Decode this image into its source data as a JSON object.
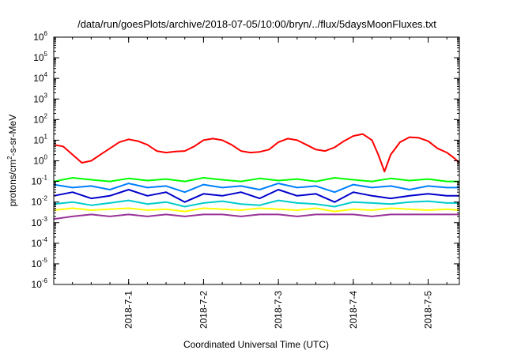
{
  "chart_data": {
    "type": "line",
    "title": "/data/run/goesPlots/archive/2018-07-05/10:00/bryn/../flux/5daysMoonFluxes.txt",
    "xlabel": "Coordinated Universal Time (UTC)",
    "ylabel": {
      "base": "protons/cm",
      "exponent": "2",
      "rest": "-s-sr-MeV"
    },
    "yscale": "log",
    "ylim": [
      1e-06,
      1000000.0
    ],
    "y_ticks": [
      {
        "base": "10",
        "exponent": "-6",
        "value": 1e-06
      },
      {
        "base": "10",
        "exponent": "-5",
        "value": 1e-05
      },
      {
        "base": "10",
        "exponent": "-4",
        "value": 0.0001
      },
      {
        "base": "10",
        "exponent": "-3",
        "value": 0.001
      },
      {
        "base": "10",
        "exponent": "-2",
        "value": 0.01
      },
      {
        "base": "10",
        "exponent": "-1",
        "value": 0.1
      },
      {
        "base": "10",
        "exponent": "0",
        "value": 1
      },
      {
        "base": "10",
        "exponent": "1",
        "value": 10
      },
      {
        "base": "10",
        "exponent": "2",
        "value": 100
      },
      {
        "base": "10",
        "exponent": "3",
        "value": 1000
      },
      {
        "base": "10",
        "exponent": "4",
        "value": 10000
      },
      {
        "base": "10",
        "exponent": "5",
        "value": 100000
      },
      {
        "base": "10",
        "exponent": "6",
        "value": 1000000
      }
    ],
    "xlim": [
      "2018-06-30T00:00",
      "2018-07-05T10:00"
    ],
    "x_ticks": [
      {
        "label": "2018-7-1",
        "value": "2018-07-01T00:00"
      },
      {
        "label": "2018-7-2",
        "value": "2018-07-02T00:00"
      },
      {
        "label": "2018-7-3",
        "value": "2018-07-03T00:00"
      },
      {
        "label": "2018-7-4",
        "value": "2018-07-04T00:00"
      },
      {
        "label": "2018-7-5",
        "value": "2018-07-05T00:00"
      }
    ],
    "grid": false,
    "legend": "none",
    "series": [
      {
        "color": "#ff0000",
        "x": [
          "2018-06-30T00:00",
          "2018-06-30T03:00",
          "2018-06-30T06:00",
          "2018-06-30T09:00",
          "2018-06-30T12:00",
          "2018-06-30T15:00",
          "2018-06-30T18:00",
          "2018-06-30T21:00",
          "2018-07-01T00:00",
          "2018-07-01T03:00",
          "2018-07-01T06:00",
          "2018-07-01T09:00",
          "2018-07-01T12:00",
          "2018-07-01T15:00",
          "2018-07-01T18:00",
          "2018-07-01T21:00",
          "2018-07-02T00:00",
          "2018-07-02T03:00",
          "2018-07-02T06:00",
          "2018-07-02T09:00",
          "2018-07-02T12:00",
          "2018-07-02T15:00",
          "2018-07-02T18:00",
          "2018-07-02T21:00",
          "2018-07-03T00:00",
          "2018-07-03T03:00",
          "2018-07-03T06:00",
          "2018-07-03T09:00",
          "2018-07-03T12:00",
          "2018-07-03T15:00",
          "2018-07-03T18:00",
          "2018-07-03T21:00",
          "2018-07-04T00:00",
          "2018-07-04T03:00",
          "2018-07-04T06:00",
          "2018-07-04T08:00",
          "2018-07-04T10:00",
          "2018-07-04T12:00",
          "2018-07-04T15:00",
          "2018-07-04T18:00",
          "2018-07-04T21:00",
          "2018-07-05T00:00",
          "2018-07-05T03:00",
          "2018-07-05T06:00",
          "2018-07-05T08:00",
          "2018-07-05T10:00"
        ],
        "y": [
          6,
          5,
          2,
          0.8,
          1,
          2,
          4,
          8,
          11,
          9,
          6,
          3,
          2.5,
          2.8,
          3,
          5,
          10,
          12,
          10,
          6,
          3,
          2.5,
          2.7,
          3.5,
          8,
          12,
          10,
          6,
          3.5,
          3,
          4.5,
          9,
          16,
          20,
          10,
          2,
          0.3,
          2,
          8,
          14,
          13,
          9,
          4,
          2.5,
          1.5,
          0.8
        ]
      },
      {
        "color": "#00ff00",
        "x": [
          "2018-06-30T00:00",
          "2018-06-30T06:00",
          "2018-06-30T12:00",
          "2018-06-30T18:00",
          "2018-07-01T00:00",
          "2018-07-01T06:00",
          "2018-07-01T12:00",
          "2018-07-01T18:00",
          "2018-07-02T00:00",
          "2018-07-02T06:00",
          "2018-07-02T12:00",
          "2018-07-02T18:00",
          "2018-07-03T00:00",
          "2018-07-03T06:00",
          "2018-07-03T12:00",
          "2018-07-03T18:00",
          "2018-07-04T00:00",
          "2018-07-04T06:00",
          "2018-07-04T12:00",
          "2018-07-04T18:00",
          "2018-07-05T00:00",
          "2018-07-05T06:00",
          "2018-07-05T10:00"
        ],
        "y": [
          0.1,
          0.15,
          0.12,
          0.1,
          0.14,
          0.11,
          0.13,
          0.1,
          0.15,
          0.12,
          0.1,
          0.14,
          0.11,
          0.13,
          0.1,
          0.15,
          0.12,
          0.1,
          0.14,
          0.11,
          0.13,
          0.1,
          0.1
        ]
      },
      {
        "color": "#0080ff",
        "x": [
          "2018-06-30T00:00",
          "2018-06-30T06:00",
          "2018-06-30T12:00",
          "2018-06-30T18:00",
          "2018-07-01T00:00",
          "2018-07-01T06:00",
          "2018-07-01T12:00",
          "2018-07-01T18:00",
          "2018-07-02T00:00",
          "2018-07-02T06:00",
          "2018-07-02T12:00",
          "2018-07-02T18:00",
          "2018-07-03T00:00",
          "2018-07-03T06:00",
          "2018-07-03T12:00",
          "2018-07-03T18:00",
          "2018-07-04T00:00",
          "2018-07-04T06:00",
          "2018-07-04T12:00",
          "2018-07-04T18:00",
          "2018-07-05T00:00",
          "2018-07-05T06:00",
          "2018-07-05T10:00"
        ],
        "y": [
          0.07,
          0.05,
          0.06,
          0.04,
          0.08,
          0.05,
          0.06,
          0.03,
          0.07,
          0.05,
          0.06,
          0.04,
          0.08,
          0.05,
          0.06,
          0.03,
          0.07,
          0.05,
          0.06,
          0.04,
          0.06,
          0.05,
          0.05
        ]
      },
      {
        "color": "#0000cc",
        "x": [
          "2018-06-30T00:00",
          "2018-06-30T06:00",
          "2018-06-30T12:00",
          "2018-06-30T18:00",
          "2018-07-01T00:00",
          "2018-07-01T06:00",
          "2018-07-01T12:00",
          "2018-07-01T18:00",
          "2018-07-02T00:00",
          "2018-07-02T06:00",
          "2018-07-02T12:00",
          "2018-07-02T18:00",
          "2018-07-03T00:00",
          "2018-07-03T06:00",
          "2018-07-03T12:00",
          "2018-07-03T18:00",
          "2018-07-04T00:00",
          "2018-07-04T06:00",
          "2018-07-04T12:00",
          "2018-07-04T18:00",
          "2018-07-05T00:00",
          "2018-07-05T06:00",
          "2018-07-05T10:00"
        ],
        "y": [
          0.02,
          0.03,
          0.015,
          0.02,
          0.04,
          0.02,
          0.03,
          0.01,
          0.025,
          0.02,
          0.03,
          0.015,
          0.04,
          0.02,
          0.025,
          0.01,
          0.03,
          0.02,
          0.015,
          0.02,
          0.025,
          0.02,
          0.02
        ]
      },
      {
        "color": "#00cccc",
        "x": [
          "2018-06-30T00:00",
          "2018-06-30T06:00",
          "2018-06-30T12:00",
          "2018-06-30T18:00",
          "2018-07-01T00:00",
          "2018-07-01T06:00",
          "2018-07-01T12:00",
          "2018-07-01T18:00",
          "2018-07-02T00:00",
          "2018-07-02T06:00",
          "2018-07-02T12:00",
          "2018-07-02T18:00",
          "2018-07-03T00:00",
          "2018-07-03T06:00",
          "2018-07-03T12:00",
          "2018-07-03T18:00",
          "2018-07-04T00:00",
          "2018-07-04T06:00",
          "2018-07-04T12:00",
          "2018-07-04T18:00",
          "2018-07-05T00:00",
          "2018-07-05T06:00",
          "2018-07-05T10:00"
        ],
        "y": [
          0.008,
          0.01,
          0.007,
          0.009,
          0.012,
          0.008,
          0.01,
          0.006,
          0.009,
          0.011,
          0.008,
          0.007,
          0.012,
          0.009,
          0.008,
          0.006,
          0.01,
          0.009,
          0.008,
          0.01,
          0.011,
          0.009,
          0.009
        ]
      },
      {
        "color": "#ffff00",
        "x": [
          "2018-06-30T00:00",
          "2018-06-30T06:00",
          "2018-06-30T12:00",
          "2018-06-30T18:00",
          "2018-07-01T00:00",
          "2018-07-01T06:00",
          "2018-07-01T12:00",
          "2018-07-01T18:00",
          "2018-07-02T00:00",
          "2018-07-02T06:00",
          "2018-07-02T12:00",
          "2018-07-02T18:00",
          "2018-07-03T00:00",
          "2018-07-03T06:00",
          "2018-07-03T12:00",
          "2018-07-03T18:00",
          "2018-07-04T00:00",
          "2018-07-04T06:00",
          "2018-07-04T12:00",
          "2018-07-04T18:00",
          "2018-07-05T00:00",
          "2018-07-05T06:00",
          "2018-07-05T10:00"
        ],
        "y": [
          0.004,
          0.005,
          0.004,
          0.0045,
          0.005,
          0.004,
          0.0045,
          0.0035,
          0.005,
          0.0045,
          0.004,
          0.005,
          0.0045,
          0.004,
          0.005,
          0.0035,
          0.0045,
          0.004,
          0.005,
          0.0045,
          0.004,
          0.0045,
          0.004
        ]
      },
      {
        "color": "#993399",
        "x": [
          "2018-06-30T00:00",
          "2018-06-30T06:00",
          "2018-06-30T12:00",
          "2018-06-30T18:00",
          "2018-07-01T00:00",
          "2018-07-01T06:00",
          "2018-07-01T12:00",
          "2018-07-01T18:00",
          "2018-07-02T00:00",
          "2018-07-02T06:00",
          "2018-07-02T12:00",
          "2018-07-02T18:00",
          "2018-07-03T00:00",
          "2018-07-03T06:00",
          "2018-07-03T12:00",
          "2018-07-03T18:00",
          "2018-07-04T00:00",
          "2018-07-04T06:00",
          "2018-07-04T12:00",
          "2018-07-04T18:00",
          "2018-07-05T00:00",
          "2018-07-05T06:00",
          "2018-07-05T10:00"
        ],
        "y": [
          0.0015,
          0.002,
          0.0025,
          0.002,
          0.0025,
          0.002,
          0.0025,
          0.002,
          0.0025,
          0.0025,
          0.002,
          0.0025,
          0.0025,
          0.002,
          0.0025,
          0.0025,
          0.0025,
          0.002,
          0.0025,
          0.0025,
          0.0025,
          0.0025,
          0.0025
        ]
      }
    ]
  }
}
